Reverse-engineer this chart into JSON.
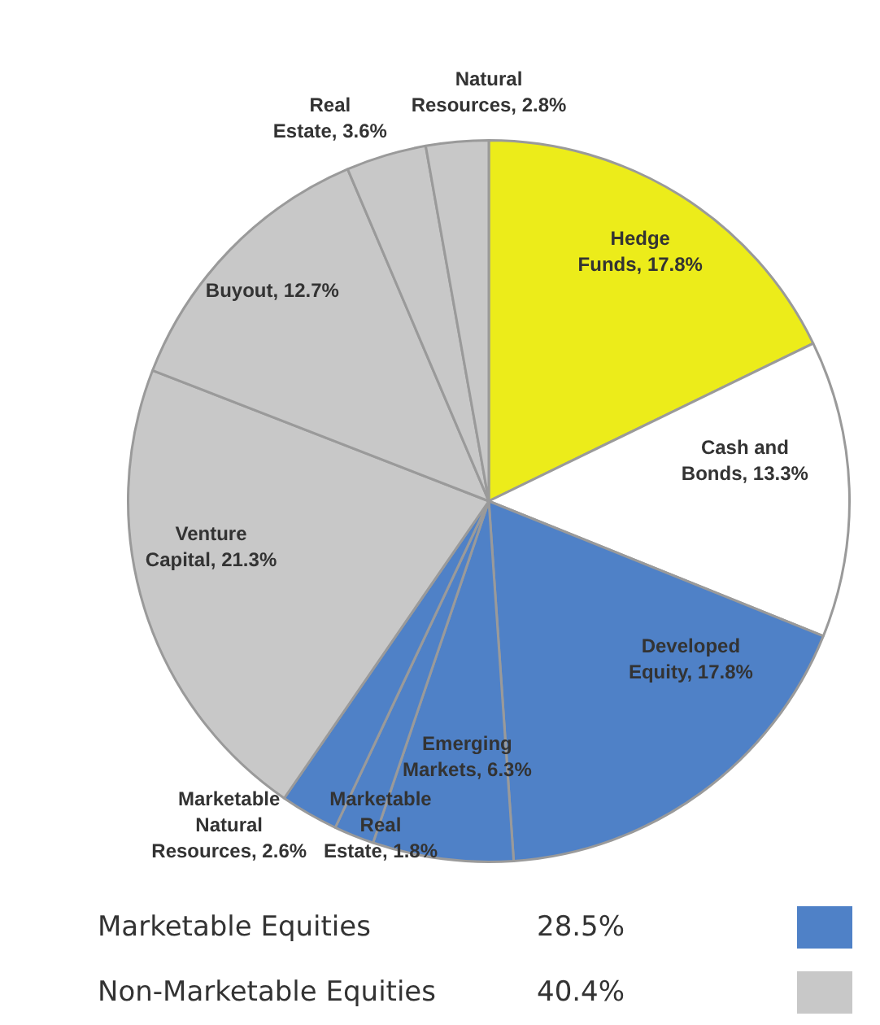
{
  "chart_data": {
    "type": "pie",
    "categories": [
      "Hedge Funds",
      "Cash and Bonds",
      "Developed Equity",
      "Emerging Markets",
      "Marketable Real Estate",
      "Marketable Natural Resources",
      "Venture Capital",
      "Buyout",
      "Real Estate",
      "Natural Resources"
    ],
    "values": [
      17.8,
      13.3,
      17.8,
      6.3,
      1.8,
      2.6,
      21.3,
      12.7,
      3.6,
      2.8
    ],
    "value_labels": [
      "17.8%",
      "13.3%",
      "17.8%",
      "6.3%",
      "1.8%",
      "2.6%",
      "21.3%",
      "12.7%",
      "3.6%",
      "2.8%"
    ],
    "colors": [
      "#ecec1a",
      "#ffffff",
      "#4f81c7",
      "#4f81c7",
      "#4f81c7",
      "#4f81c7",
      "#c8c8c8",
      "#c8c8c8",
      "#c8c8c8",
      "#c8c8c8"
    ],
    "annotations": [
      "Marketable Equities",
      "28.5%",
      "Non-Marketable Equities",
      "40.4%"
    ],
    "legend": false
  }
}
